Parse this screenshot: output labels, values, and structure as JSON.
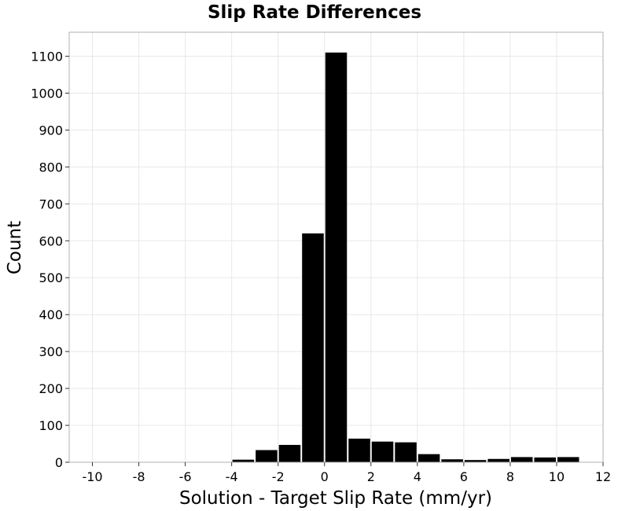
{
  "chart_data": {
    "type": "bar",
    "title": "Slip Rate Differences",
    "xlabel": "Solution - Target Slip Rate (mm/yr)",
    "ylabel": "Count",
    "xlim": [
      -11,
      12
    ],
    "ylim": [
      0,
      1165
    ],
    "xticks": [
      -10,
      -8,
      -6,
      -4,
      -2,
      0,
      2,
      4,
      6,
      8,
      10,
      12
    ],
    "yticks": [
      0,
      100,
      200,
      300,
      400,
      500,
      600,
      700,
      800,
      900,
      1000,
      1100
    ],
    "bin_width": 1,
    "grid": true,
    "bar_color": "#000000",
    "bins": [
      {
        "x": -3.5,
        "value": 7
      },
      {
        "x": -2.5,
        "value": 33
      },
      {
        "x": -1.5,
        "value": 47
      },
      {
        "x": -0.5,
        "value": 620
      },
      {
        "x": 0.5,
        "value": 1110
      },
      {
        "x": 1.5,
        "value": 64
      },
      {
        "x": 2.5,
        "value": 56
      },
      {
        "x": 3.5,
        "value": 54
      },
      {
        "x": 4.5,
        "value": 22
      },
      {
        "x": 5.5,
        "value": 8
      },
      {
        "x": 6.5,
        "value": 6
      },
      {
        "x": 7.5,
        "value": 9
      },
      {
        "x": 8.5,
        "value": 14
      },
      {
        "x": 9.5,
        "value": 13
      },
      {
        "x": 10.5,
        "value": 14
      }
    ]
  }
}
